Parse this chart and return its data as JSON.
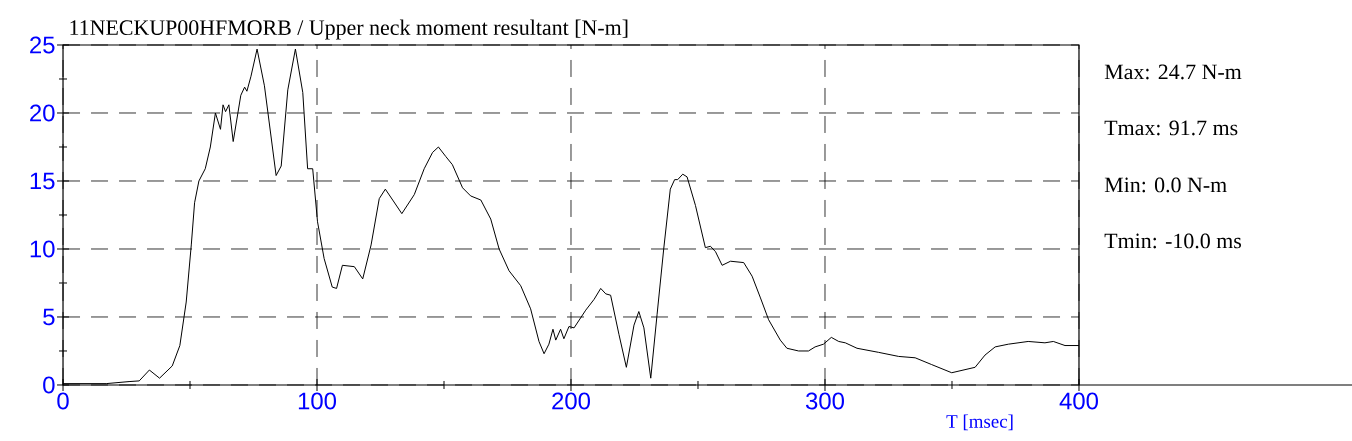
{
  "chart_data": {
    "type": "line",
    "title": "11NECKUP00HFMORB / Upper neck moment resultant [N-m]",
    "xlabel": "T [msec]",
    "x": [
      0,
      17,
      26,
      30,
      34,
      38,
      43,
      46,
      48.5,
      50.5,
      51.8,
      53.5,
      56,
      58,
      60,
      62,
      63,
      64,
      65.3,
      67,
      70,
      71.5,
      72.4,
      74,
      76.4,
      79.3,
      83.9,
      85.9,
      88.5,
      91.5,
      94.4,
      96.3,
      98.3,
      100.2,
      102.8,
      106,
      107.7,
      110,
      114.7,
      118,
      121.3,
      124.5,
      126.9,
      129.8,
      133.4,
      138.3,
      142.2,
      145.5,
      147.8,
      150.7,
      153.3,
      157.3,
      160.5,
      164.5,
      168.4,
      171.7,
      175.6,
      180.2,
      184.1,
      187.4,
      189.4,
      191.3,
      192.9,
      194,
      195.9,
      197.2,
      199.2,
      201.2,
      205.8,
      209.1,
      211.7,
      213.7,
      215.6,
      218.9,
      221.8,
      224.8,
      226.7,
      228.7,
      231.4,
      233.9,
      236.5,
      239.1,
      240.8,
      242,
      244,
      245.7,
      249,
      252.9,
      254.9,
      256.9,
      259.5,
      262.8,
      268,
      271.3,
      274.6,
      277.8,
      282.4,
      285,
      289.6,
      293.5,
      296.1,
      299.4,
      302.5,
      305.4,
      308,
      312.6,
      321.1,
      329,
      335.5,
      342,
      349.9,
      359.1,
      363,
      367,
      372.2,
      380,
      386.6,
      389.9,
      394.5,
      400
    ],
    "values": [
      0.1,
      0.1,
      0.25,
      0.3,
      1.1,
      0.5,
      1.4,
      2.9,
      6.1,
      10.3,
      13.4,
      15,
      15.9,
      17.5,
      20,
      18.8,
      20.6,
      20.1,
      20.6,
      17.9,
      21.3,
      21.9,
      21.6,
      22.7,
      24.7,
      22,
      15.4,
      16.1,
      21.7,
      24.7,
      21.5,
      15.9,
      15.9,
      12,
      9.3,
      7.2,
      7.1,
      8.8,
      8.7,
      7.8,
      10.3,
      13.7,
      14.4,
      13.6,
      12.6,
      14,
      15.9,
      17.1,
      17.5,
      16.8,
      16.2,
      14.5,
      13.9,
      13.6,
      12.2,
      10,
      8.4,
      7.3,
      5.6,
      3.2,
      2.3,
      3,
      4.1,
      3.3,
      4.1,
      3.4,
      4.3,
      4.2,
      5.5,
      6.3,
      7.1,
      6.7,
      6.6,
      3.7,
      1.3,
      4.4,
      5.4,
      4.2,
      0.5,
      5.2,
      10,
      14.4,
      15.1,
      15.1,
      15.5,
      15.3,
      13.2,
      10.1,
      10.2,
      9.8,
      8.8,
      9.1,
      9,
      8,
      6.4,
      4.8,
      3.3,
      2.7,
      2.5,
      2.5,
      2.8,
      3,
      3.5,
      3.2,
      3.1,
      2.7,
      2.4,
      2.1,
      2,
      1.5,
      0.9,
      1.3,
      2.2,
      2.8,
      3,
      3.2,
      3.1,
      3.2,
      2.9,
      2.9
    ],
    "color": "#000000",
    "line_style": "solid",
    "marker": "none",
    "grid": true,
    "xlim": [
      0,
      400
    ],
    "ylim": [
      0,
      25
    ],
    "xticks": [
      0,
      100,
      200,
      300,
      400
    ],
    "yticks": [
      0,
      5,
      10,
      15,
      20,
      25
    ],
    "annotations": [
      "Max:   24.7 N-m",
      "Tmax:  91.7 ms",
      "Min:    0.0 N-m",
      "Tmin: -10.0 ms"
    ]
  }
}
